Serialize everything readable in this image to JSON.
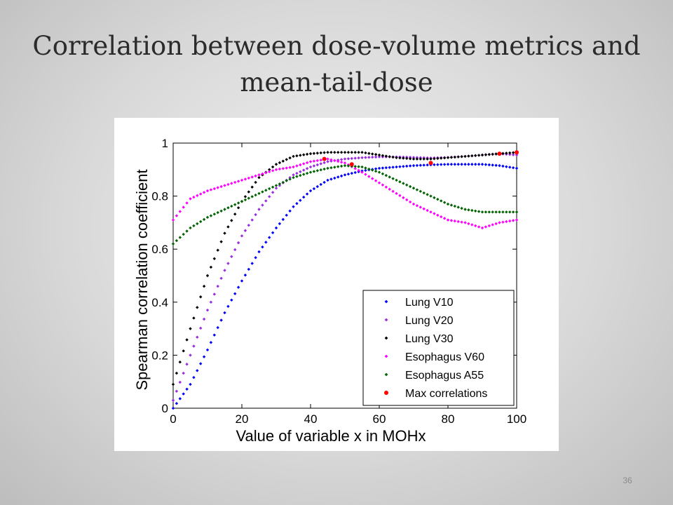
{
  "slide": {
    "title_line1": "Correlation between dose-volume metrics and",
    "title_line2": "mean-tail-dose",
    "page_number": "36"
  },
  "chart_data": {
    "type": "scatter",
    "xlabel": "Value of variable x in MOHx",
    "ylabel": "Spearman correlation coefficient",
    "xlim": [
      0,
      100
    ],
    "ylim": [
      0,
      1
    ],
    "xticks": [
      "0",
      "20",
      "40",
      "60",
      "80",
      "100"
    ],
    "yticks": [
      "0",
      "0.2",
      "0.4",
      "0.6",
      "0.8",
      "1"
    ],
    "grid": false,
    "legend_position": "bottom-right",
    "series": [
      {
        "name": "Lung V10",
        "color": "#0000ff",
        "x": [
          0,
          5,
          10,
          15,
          20,
          25,
          30,
          35,
          40,
          45,
          50,
          55,
          60,
          65,
          70,
          75,
          80,
          85,
          90,
          95,
          100
        ],
        "y": [
          0.0,
          0.09,
          0.22,
          0.36,
          0.48,
          0.59,
          0.68,
          0.76,
          0.82,
          0.86,
          0.88,
          0.895,
          0.905,
          0.91,
          0.915,
          0.918,
          0.92,
          0.92,
          0.92,
          0.915,
          0.905
        ]
      },
      {
        "name": "Lung V20",
        "color": "#9a2be2",
        "x": [
          0,
          5,
          10,
          15,
          20,
          25,
          30,
          35,
          40,
          45,
          50,
          55,
          60,
          65,
          70,
          75,
          80,
          85,
          90,
          95,
          100
        ],
        "y": [
          0.03,
          0.2,
          0.37,
          0.52,
          0.65,
          0.75,
          0.83,
          0.88,
          0.91,
          0.93,
          0.94,
          0.945,
          0.948,
          0.948,
          0.946,
          0.944,
          0.946,
          0.95,
          0.955,
          0.96,
          0.955
        ]
      },
      {
        "name": "Lung V30",
        "color": "#000000",
        "x": [
          0,
          5,
          10,
          15,
          20,
          25,
          30,
          35,
          40,
          45,
          50,
          55,
          60,
          65,
          70,
          75,
          80,
          85,
          90,
          95,
          100
        ],
        "y": [
          0.09,
          0.3,
          0.5,
          0.66,
          0.78,
          0.87,
          0.92,
          0.95,
          0.96,
          0.965,
          0.965,
          0.965,
          0.955,
          0.945,
          0.94,
          0.94,
          0.945,
          0.95,
          0.955,
          0.96,
          0.965
        ]
      },
      {
        "name": "Esophagus V60",
        "color": "#ff00ff",
        "x": [
          0,
          5,
          10,
          15,
          20,
          25,
          30,
          35,
          40,
          45,
          50,
          55,
          60,
          65,
          70,
          75,
          80,
          85,
          90,
          95,
          100
        ],
        "y": [
          0.71,
          0.79,
          0.82,
          0.84,
          0.86,
          0.88,
          0.9,
          0.91,
          0.93,
          0.94,
          0.925,
          0.89,
          0.85,
          0.81,
          0.77,
          0.74,
          0.71,
          0.7,
          0.68,
          0.7,
          0.71
        ]
      },
      {
        "name": "Esophagus A55",
        "color": "#006400",
        "x": [
          0,
          5,
          10,
          15,
          20,
          25,
          30,
          35,
          40,
          45,
          50,
          55,
          60,
          65,
          70,
          75,
          80,
          85,
          90,
          95,
          100
        ],
        "y": [
          0.62,
          0.68,
          0.72,
          0.75,
          0.78,
          0.81,
          0.84,
          0.87,
          0.89,
          0.905,
          0.915,
          0.91,
          0.89,
          0.86,
          0.83,
          0.8,
          0.77,
          0.75,
          0.74,
          0.74,
          0.74
        ]
      },
      {
        "name": "Max correlations",
        "color": "#ff0000",
        "x": [
          44,
          52,
          75,
          95,
          100
        ],
        "y": [
          0.94,
          0.92,
          0.925,
          0.96,
          0.965
        ]
      }
    ]
  }
}
